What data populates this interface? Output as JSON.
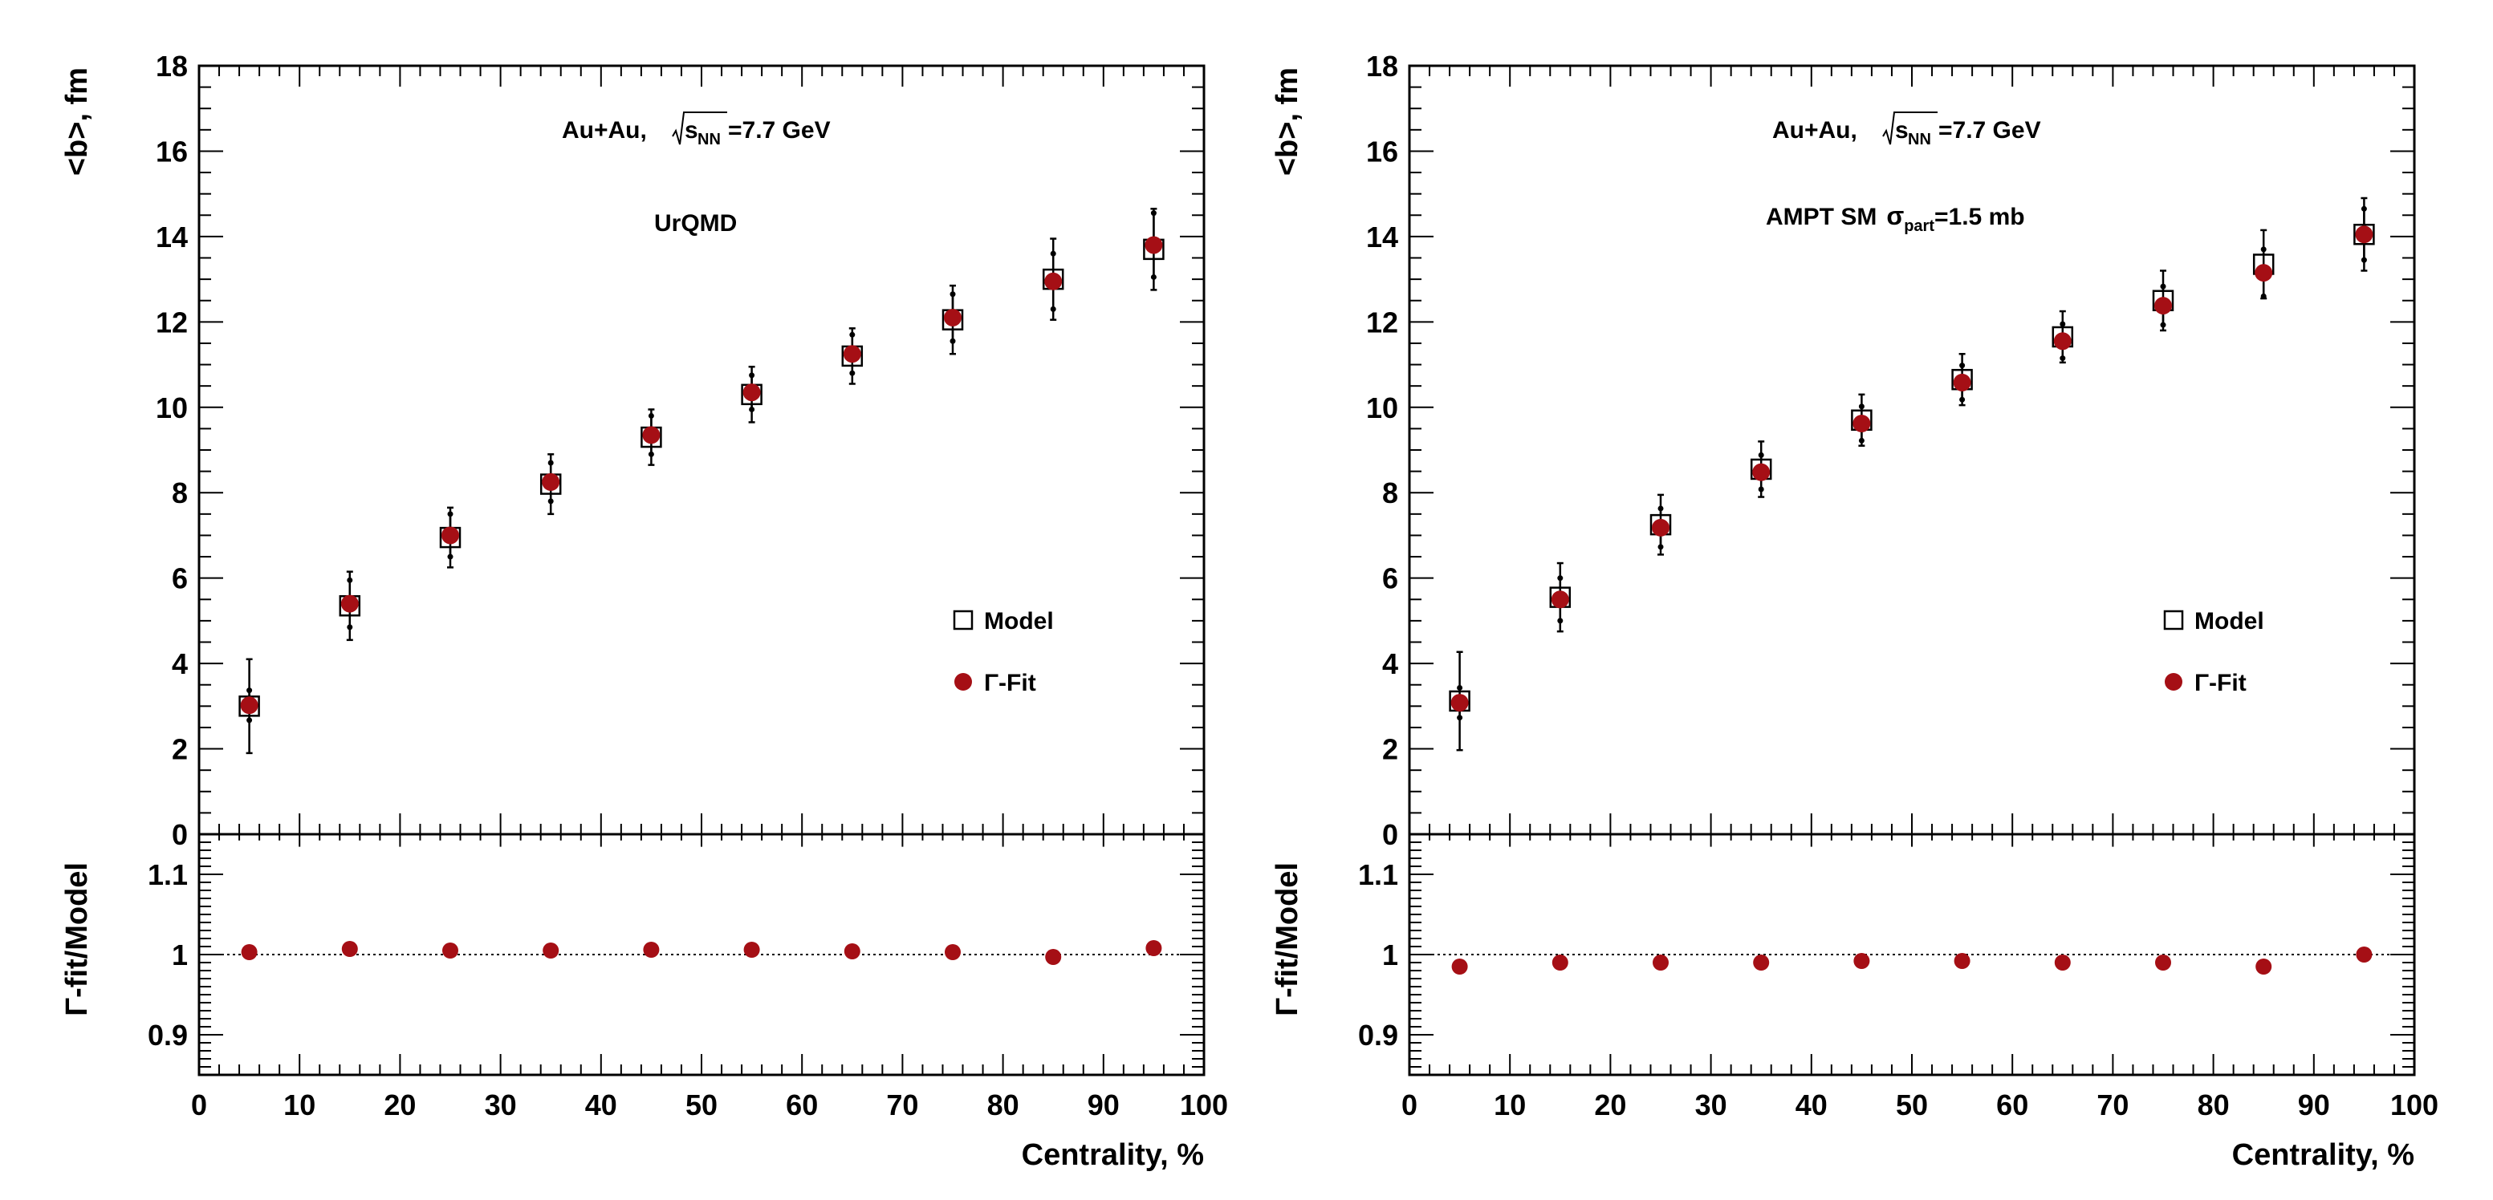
{
  "chart_data": [
    {
      "type": "scatter",
      "title": "UrQMD",
      "annotation": {
        "system": "Au+Au,",
        "sqrt": "s",
        "sqrt_sub": "NN",
        "energy": "=7.7 GeV",
        "model_line": "UrQMD"
      },
      "xlabel": "Centrality, %",
      "ylabel_top": "<b>, fm",
      "ylabel_bottom": {
        "greek": "Γ",
        "text": "-fit/Model"
      },
      "xlim": [
        0,
        100
      ],
      "ylim_top": [
        0,
        18
      ],
      "ylim_bottom": [
        0.85,
        1.15
      ],
      "x_ticks": [
        "0",
        "10",
        "20",
        "30",
        "40",
        "50",
        "60",
        "70",
        "80",
        "90",
        "100"
      ],
      "y_ticks_top": [
        "0",
        "2",
        "4",
        "6",
        "8",
        "10",
        "12",
        "14",
        "16",
        "18"
      ],
      "y_ticks_bottom": [
        "0.9",
        "1",
        "1.1"
      ],
      "legend": {
        "position": "right-middle",
        "entries": [
          {
            "marker": "open-square",
            "label": "Model"
          },
          {
            "marker": "filled-circle",
            "greek": "Γ",
            "label": "-Fit"
          }
        ]
      },
      "x": [
        5,
        15,
        25,
        35,
        45,
        55,
        65,
        75,
        85,
        95
      ],
      "series": [
        {
          "name": "Model",
          "marker": "open-square",
          "values": [
            3.0,
            5.35,
            6.95,
            8.2,
            9.3,
            10.3,
            11.2,
            12.05,
            13.0,
            13.7
          ],
          "errors": [
            1.1,
            0.8,
            0.7,
            0.7,
            0.65,
            0.65,
            0.65,
            0.8,
            0.95,
            0.95
          ]
        },
        {
          "name": "Γ-Fit",
          "marker": "filled-circle",
          "color": "#a50f15",
          "values": [
            3.02,
            5.4,
            7.0,
            8.25,
            9.35,
            10.35,
            11.25,
            12.1,
            12.95,
            13.8
          ],
          "errors": [
            0.35,
            0.55,
            0.5,
            0.45,
            0.45,
            0.4,
            0.45,
            0.55,
            0.65,
            0.75
          ]
        }
      ],
      "ratio": {
        "name": "Γ-fit/Model",
        "values": [
          1.003,
          1.007,
          1.005,
          1.005,
          1.006,
          1.006,
          1.004,
          1.003,
          0.997,
          1.008
        ],
        "reference": 1
      }
    },
    {
      "type": "scatter",
      "title": "AMPT SM",
      "annotation": {
        "system": "Au+Au,",
        "sqrt": "s",
        "sqrt_sub": "NN",
        "energy": "=7.7 GeV",
        "model_line": "AMPT SM",
        "sigma": "σ",
        "sigma_sub": "part",
        "sigma_value": "=1.5 mb"
      },
      "xlabel": "Centrality, %",
      "ylabel_top": "<b>, fm",
      "ylabel_bottom": {
        "greek": "Γ",
        "text": "-fit/Model"
      },
      "xlim": [
        0,
        100
      ],
      "ylim_top": [
        0,
        18
      ],
      "ylim_bottom": [
        0.85,
        1.15
      ],
      "x_ticks": [
        "0",
        "10",
        "20",
        "30",
        "40",
        "50",
        "60",
        "70",
        "80",
        "90",
        "100"
      ],
      "y_ticks_top": [
        "0",
        "2",
        "4",
        "6",
        "8",
        "10",
        "12",
        "14",
        "16",
        "18"
      ],
      "y_ticks_bottom": [
        "0.9",
        "1",
        "1.1"
      ],
      "legend": {
        "position": "right-middle",
        "entries": [
          {
            "marker": "open-square",
            "label": "Model"
          },
          {
            "marker": "filled-circle",
            "greek": "Γ",
            "label": "-Fit"
          }
        ]
      },
      "x": [
        5,
        15,
        25,
        35,
        45,
        55,
        65,
        75,
        85,
        95
      ],
      "series": [
        {
          "name": "Model",
          "marker": "open-square",
          "values": [
            3.12,
            5.55,
            7.25,
            8.55,
            9.7,
            10.65,
            11.65,
            12.5,
            13.35,
            14.05
          ],
          "errors": [
            1.15,
            0.8,
            0.7,
            0.65,
            0.6,
            0.6,
            0.6,
            0.7,
            0.8,
            0.85
          ]
        },
        {
          "name": "Γ-Fit",
          "marker": "filled-circle",
          "color": "#a50f15",
          "values": [
            3.08,
            5.5,
            7.18,
            8.48,
            9.62,
            10.58,
            11.55,
            12.38,
            13.15,
            14.05
          ],
          "errors": [
            0.35,
            0.5,
            0.45,
            0.4,
            0.4,
            0.4,
            0.4,
            0.45,
            0.55,
            0.6
          ]
        }
      ],
      "ratio": {
        "name": "Γ-fit/Model",
        "values": [
          0.985,
          0.99,
          0.99,
          0.99,
          0.992,
          0.992,
          0.99,
          0.99,
          0.985,
          1.0
        ],
        "reference": 1
      }
    }
  ]
}
